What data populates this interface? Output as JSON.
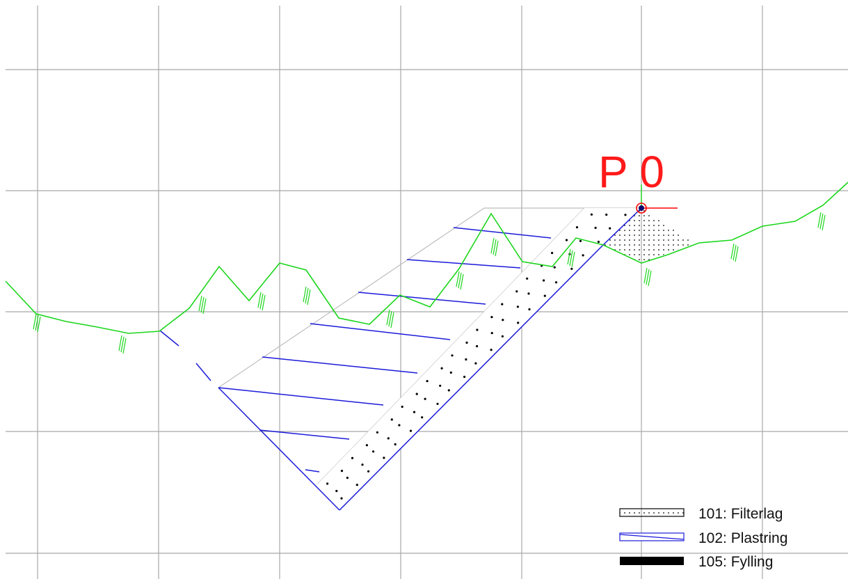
{
  "point_label": {
    "text": "P 0",
    "color": "#ff1a1a"
  },
  "colors": {
    "grid": "#a8a8a8",
    "terrain": "#1bd61b",
    "plastring": "#1a1ad9",
    "outline": "#bdbdbd",
    "marker": "#ff0000",
    "filter_dots": "#000000"
  },
  "legend": {
    "items": [
      {
        "id": "101",
        "label": "101: Filterlag",
        "swatch": "dotted-hatch"
      },
      {
        "id": "102",
        "label": "102: Plastring",
        "swatch": "blue-diagonal-hatch"
      },
      {
        "id": "105",
        "label": "105: Fylling",
        "swatch": "solid-black"
      }
    ]
  }
}
